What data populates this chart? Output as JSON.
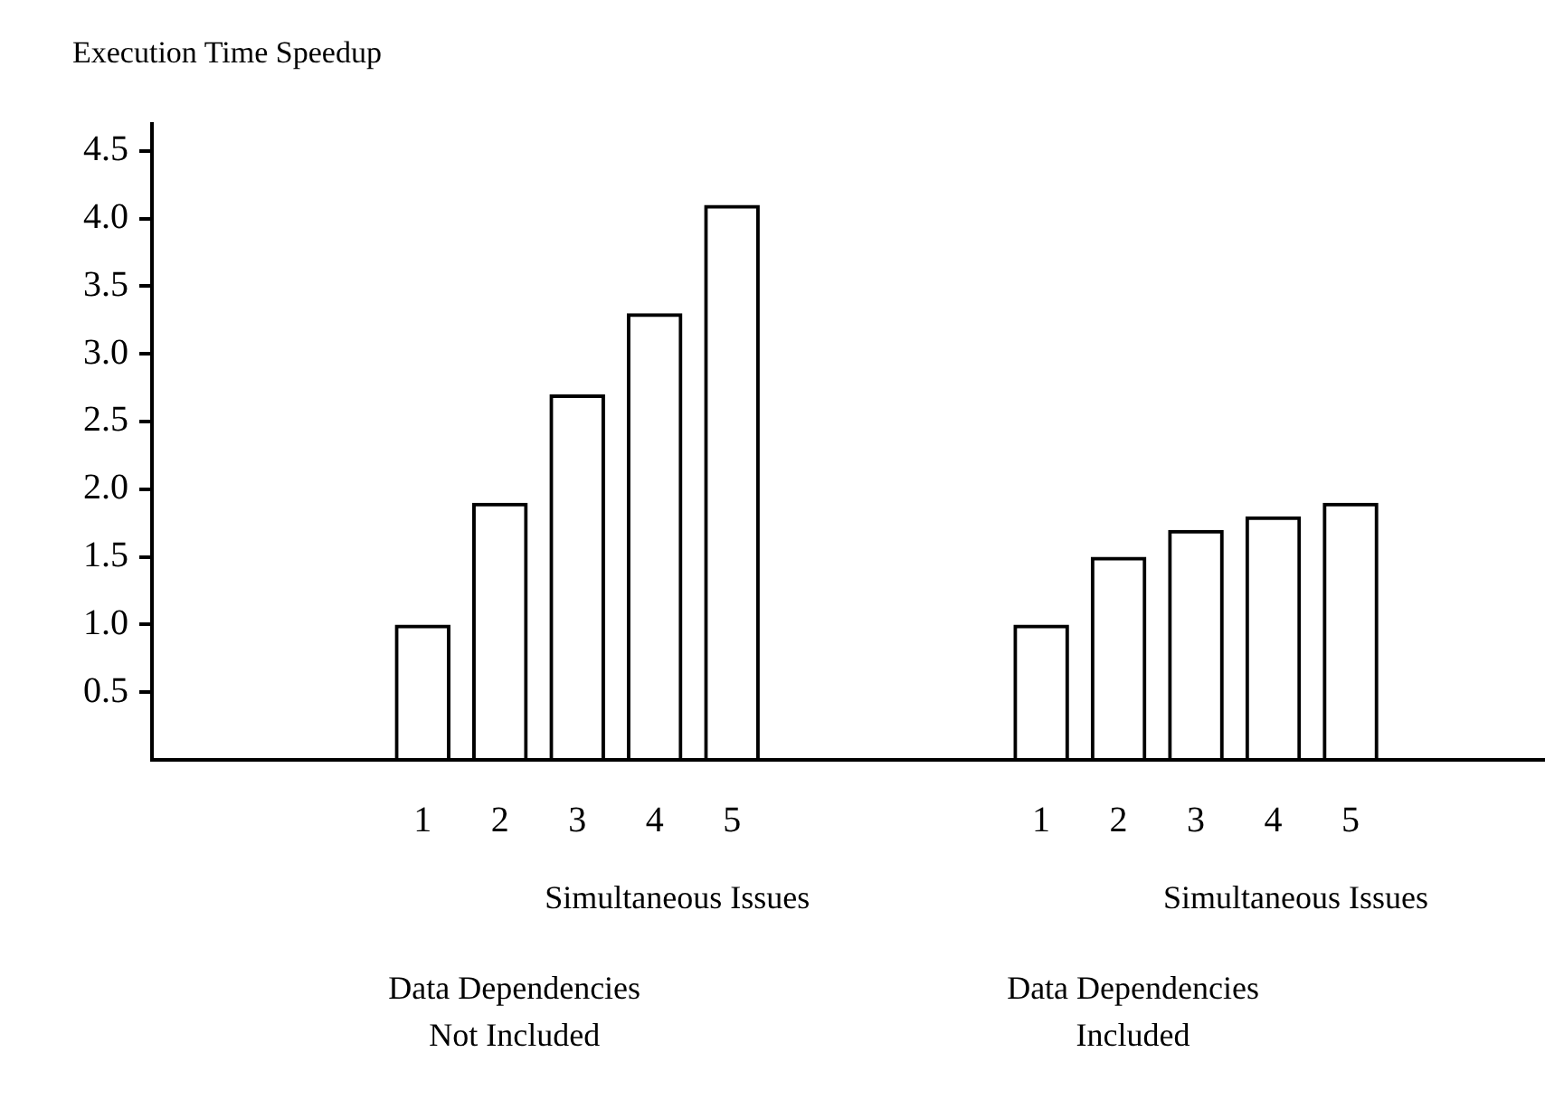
{
  "chart_data": {
    "type": "bar",
    "title": "Execution Time Speedup",
    "categories": [
      null,
      null,
      null,
      "1",
      "2",
      "3",
      "4",
      "5",
      null,
      null,
      null,
      "1",
      "2",
      "3",
      "4",
      "5",
      null,
      null
    ],
    "values": [
      null,
      null,
      null,
      1.0,
      1.9,
      2.7,
      3.3,
      4.1,
      null,
      null,
      null,
      1.0,
      1.5,
      1.7,
      1.8,
      1.9,
      null,
      null
    ],
    "color": "#000000",
    "ylim": [
      0,
      4.7
    ],
    "yticks": [
      0.5,
      {
        "value": 1,
        "label": "1.0"
      },
      1.5,
      {
        "value": 2,
        "label": "2.0"
      },
      2.5,
      {
        "value": 3,
        "label": "3.0"
      },
      3.5,
      {
        "value": 4,
        "label": "4.0"
      },
      4.5
    ],
    "grid": false,
    "legend": false,
    "annotations": [
      "Simultaneous Issues",
      "Data Dependencies Not Included",
      "Simultaneous Issues",
      "Data Dependencies Included"
    ]
  }
}
